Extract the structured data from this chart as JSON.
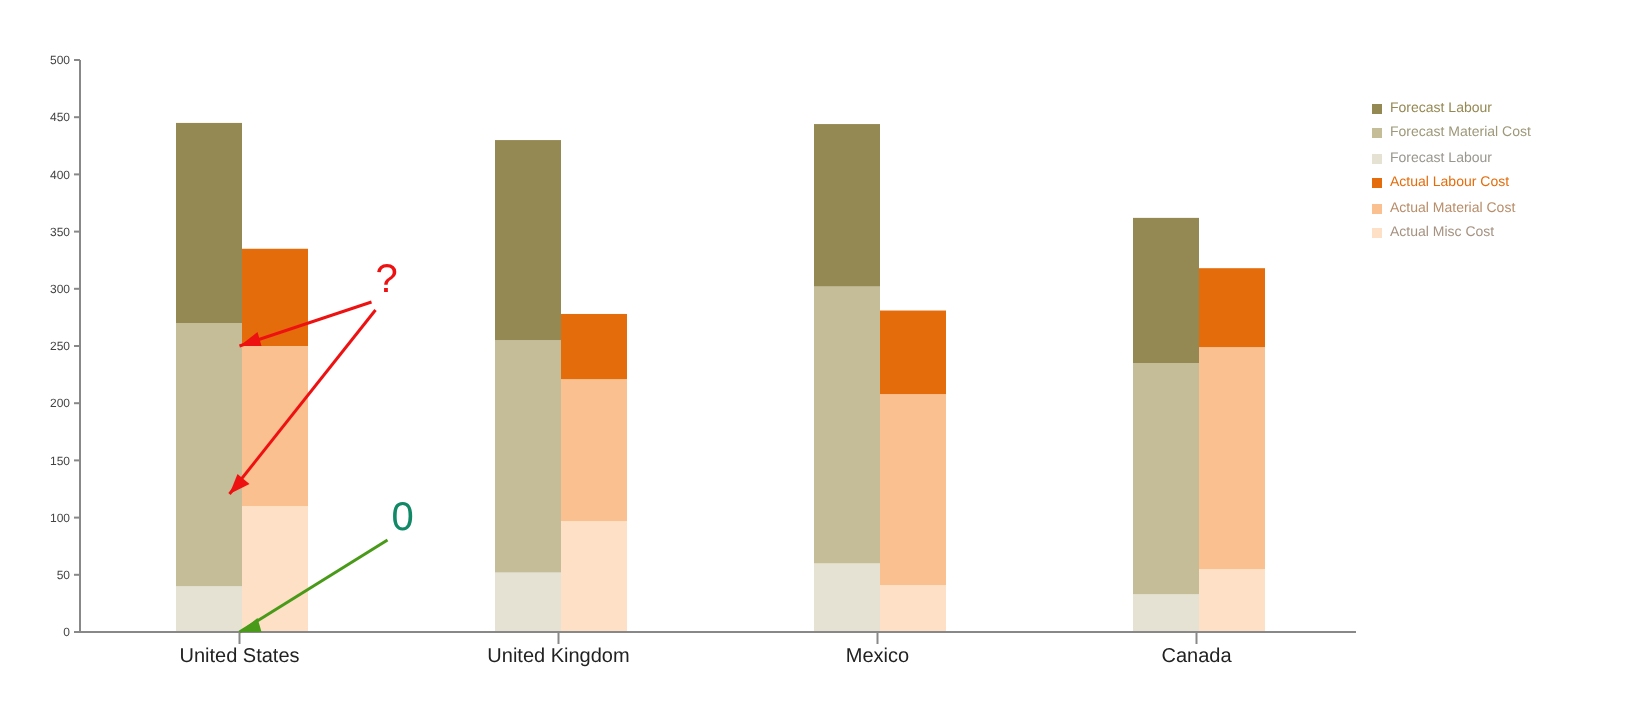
{
  "chart_data": {
    "type": "bar",
    "categories": [
      "United States",
      "United Kingdom",
      "Mexico",
      "Canada"
    ],
    "series": [
      {
        "name": "Forecast Labour",
        "color": "#e5e2d4",
        "base": [
          0,
          0,
          0,
          0
        ],
        "values": [
          40,
          52,
          60,
          33
        ]
      },
      {
        "name": "Forecast Material Cost",
        "color": "#c4bd97",
        "base": [
          40,
          52,
          60,
          33
        ],
        "values": [
          230,
          203,
          242,
          202
        ]
      },
      {
        "name": "Forecast Labour",
        "color": "#948853",
        "base": [
          270,
          255,
          302,
          235
        ],
        "values": [
          175,
          175,
          142,
          127
        ]
      },
      {
        "name": "Actual Misc Cost",
        "color": "#fde0c5",
        "base": [
          0,
          0,
          0,
          0
        ],
        "values": [
          110,
          97,
          41,
          55
        ]
      },
      {
        "name": "Actual Material Cost",
        "color": "#fac090",
        "base": [
          110,
          97,
          41,
          55
        ],
        "values": [
          140,
          124,
          167,
          194
        ]
      },
      {
        "name": "Actual Labour Cost",
        "color": "#e46c0a",
        "base": [
          250,
          221,
          208,
          249
        ],
        "values": [
          85,
          57,
          73,
          69
        ]
      }
    ],
    "ylim": [
      0,
      500
    ],
    "yticks": [
      0,
      50,
      100,
      150,
      200,
      250,
      300,
      350,
      400,
      450,
      500
    ],
    "legend": "top right",
    "annotations": [
      {
        "text": "?",
        "x": "United States",
        "y": 250
      },
      {
        "text": "0",
        "x": "United States",
        "y": 0
      }
    ]
  }
}
